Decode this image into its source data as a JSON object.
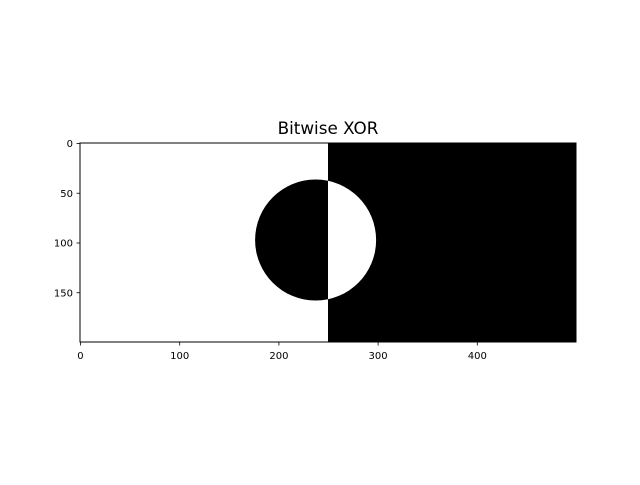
{
  "chart_data": {
    "type": "image",
    "title": "Bitwise XOR",
    "xlabel": "",
    "ylabel": "",
    "image_size": [
      500,
      200
    ],
    "xlim": [
      -0.5,
      499.5
    ],
    "ylim": [
      199.5,
      -0.5
    ],
    "x_ticks": [
      0,
      100,
      200,
      300,
      400
    ],
    "y_ticks": [
      0,
      50,
      100,
      150
    ],
    "grid": false,
    "regions": {
      "split_x": 250,
      "left_color": "#ffffff",
      "right_color": "#000000",
      "circle": {
        "cx": 237,
        "cy": 97,
        "r": 61
      }
    }
  }
}
